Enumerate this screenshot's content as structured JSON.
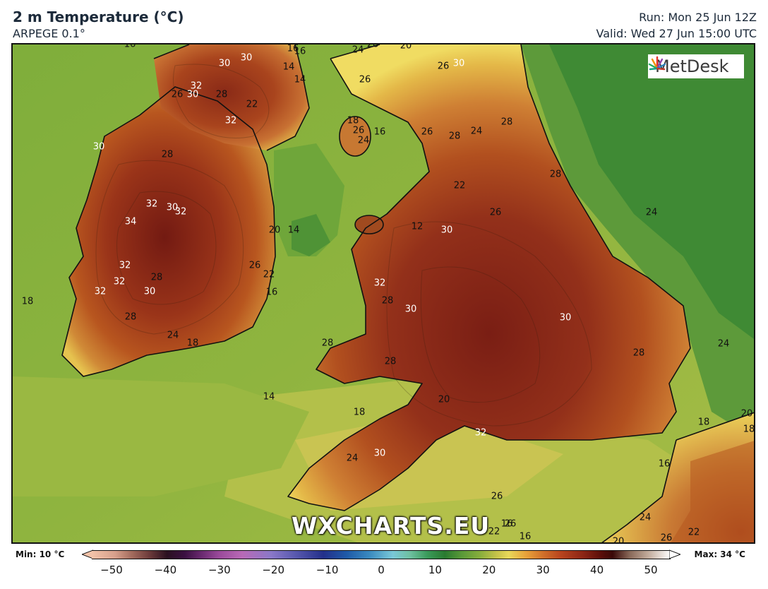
{
  "header": {
    "title": "2 m Temperature (°C)",
    "model": "ARPEGE 0.1°",
    "run": "Run: Mon 25 Jun 12Z",
    "valid": "Valid: Wed 27 Jun 15:00 UTC"
  },
  "logo": {
    "text": "MetDesk"
  },
  "watermark": "WXCHARTS.EU",
  "legend": {
    "min_label": "Min: 10 °C",
    "max_label": "Max: 34 °C",
    "ticks": [
      "−50",
      "−40",
      "−30",
      "−20",
      "−10",
      "0",
      "10",
      "20",
      "30",
      "40",
      "50"
    ],
    "range": [
      -50,
      50
    ]
  },
  "map": {
    "field": "2 m temperature",
    "region": "British Isles",
    "colors": {
      "sea_cool": "#5a9a3c",
      "sea_mid": "#86ad3c",
      "sea_warm": "#b9c24a",
      "land_warm": "#d08a3a",
      "land_hot": "#a8401f",
      "land_hottest": "#7a1e14",
      "coast": "#111111"
    },
    "labels": [
      {
        "text": "16",
        "dark": true
      },
      {
        "text": "16",
        "dark": true
      },
      {
        "text": "30",
        "dark": false
      },
      {
        "text": "30",
        "dark": false
      },
      {
        "text": "32",
        "dark": false
      },
      {
        "text": "30",
        "dark": false
      },
      {
        "text": "26",
        "dark": true
      },
      {
        "text": "28",
        "dark": true
      },
      {
        "text": "22",
        "dark": true
      },
      {
        "text": "32",
        "dark": false
      },
      {
        "text": "14",
        "dark": true
      },
      {
        "text": "14",
        "dark": true
      },
      {
        "text": "16",
        "dark": true
      },
      {
        "text": "30",
        "dark": false
      },
      {
        "text": "28",
        "dark": true
      },
      {
        "text": "32",
        "dark": false
      },
      {
        "text": "30",
        "dark": false
      },
      {
        "text": "32",
        "dark": false
      },
      {
        "text": "34",
        "dark": false
      },
      {
        "text": "32",
        "dark": false
      },
      {
        "text": "32",
        "dark": false
      },
      {
        "text": "28",
        "dark": true
      },
      {
        "text": "32",
        "dark": false
      },
      {
        "text": "30",
        "dark": false
      },
      {
        "text": "28",
        "dark": true
      },
      {
        "text": "24",
        "dark": true
      },
      {
        "text": "18",
        "dark": true
      },
      {
        "text": "18",
        "dark": true
      },
      {
        "text": "20",
        "dark": true
      },
      {
        "text": "14",
        "dark": true
      },
      {
        "text": "26",
        "dark": true
      },
      {
        "text": "22",
        "dark": true
      },
      {
        "text": "16",
        "dark": true
      },
      {
        "text": "24",
        "dark": true
      },
      {
        "text": "20",
        "dark": true
      },
      {
        "text": "26",
        "dark": true
      },
      {
        "text": "26",
        "dark": true
      },
      {
        "text": "30",
        "dark": false
      },
      {
        "text": "28",
        "dark": true
      },
      {
        "text": "18",
        "dark": true
      },
      {
        "text": "26",
        "dark": true
      },
      {
        "text": "24",
        "dark": true
      },
      {
        "text": "16",
        "dark": true
      },
      {
        "text": "26",
        "dark": true
      },
      {
        "text": "28",
        "dark": true
      },
      {
        "text": "24",
        "dark": true
      },
      {
        "text": "28",
        "dark": true
      },
      {
        "text": "22",
        "dark": true
      },
      {
        "text": "26",
        "dark": true
      },
      {
        "text": "24",
        "dark": true
      },
      {
        "text": "12",
        "dark": true
      },
      {
        "text": "30",
        "dark": false
      },
      {
        "text": "32",
        "dark": false
      },
      {
        "text": "28",
        "dark": true
      },
      {
        "text": "30",
        "dark": false
      },
      {
        "text": "30",
        "dark": false
      },
      {
        "text": "28",
        "dark": true
      },
      {
        "text": "28",
        "dark": true
      },
      {
        "text": "28",
        "dark": true
      },
      {
        "text": "24",
        "dark": true
      },
      {
        "text": "14",
        "dark": true
      },
      {
        "text": "18",
        "dark": true
      },
      {
        "text": "20",
        "dark": true
      },
      {
        "text": "32",
        "dark": false
      },
      {
        "text": "30",
        "dark": false
      },
      {
        "text": "24",
        "dark": true
      },
      {
        "text": "26",
        "dark": true
      },
      {
        "text": "16",
        "dark": true
      },
      {
        "text": "18",
        "dark": true
      },
      {
        "text": "16",
        "dark": true
      },
      {
        "text": "22",
        "dark": true
      },
      {
        "text": "20",
        "dark": true
      },
      {
        "text": "18",
        "dark": true
      },
      {
        "text": "16",
        "dark": true
      },
      {
        "text": "20",
        "dark": true
      },
      {
        "text": "24",
        "dark": true
      },
      {
        "text": "22",
        "dark": true
      },
      {
        "text": "26",
        "dark": true
      },
      {
        "text": "26",
        "dark": true
      },
      {
        "text": "28",
        "dark": true
      },
      {
        "text": "20",
        "dark": true
      }
    ]
  }
}
